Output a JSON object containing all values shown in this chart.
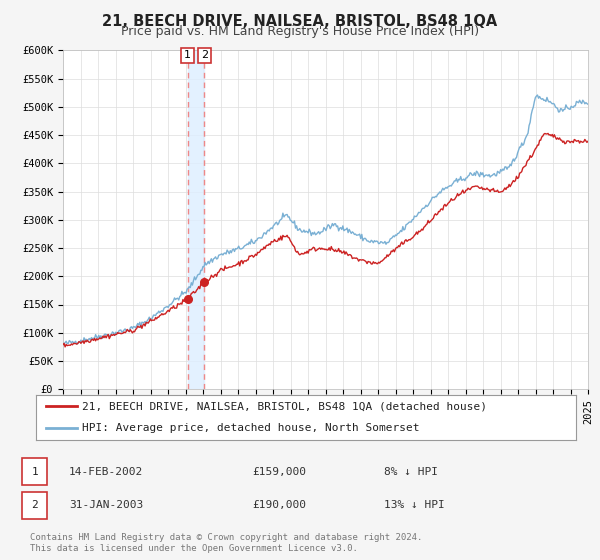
{
  "title": "21, BEECH DRIVE, NAILSEA, BRISTOL, BS48 1QA",
  "subtitle": "Price paid vs. HM Land Registry's House Price Index (HPI)",
  "ylim": [
    0,
    600000
  ],
  "yticks": [
    0,
    50000,
    100000,
    150000,
    200000,
    250000,
    300000,
    350000,
    400000,
    450000,
    500000,
    550000,
    600000
  ],
  "ytick_labels": [
    "£0",
    "£50K",
    "£100K",
    "£150K",
    "£200K",
    "£250K",
    "£300K",
    "£350K",
    "£400K",
    "£450K",
    "£500K",
    "£550K",
    "£600K"
  ],
  "background_color": "#f5f5f5",
  "plot_bg_color": "#ffffff",
  "grid_color": "#dddddd",
  "hpi_color": "#7ab0d4",
  "price_color": "#cc2222",
  "marker_color": "#cc2222",
  "vline_color": "#ee8888",
  "vspan_color": "#ddeeff",
  "sale1_date_num": 2002.12,
  "sale2_date_num": 2003.08,
  "sale1_price": 159000,
  "sale2_price": 190000,
  "legend_line1": "21, BEECH DRIVE, NAILSEA, BRISTOL, BS48 1QA (detached house)",
  "legend_line2": "HPI: Average price, detached house, North Somerset",
  "table_row1": [
    "1",
    "14-FEB-2002",
    "£159,000",
    "8% ↓ HPI"
  ],
  "table_row2": [
    "2",
    "31-JAN-2003",
    "£190,000",
    "13% ↓ HPI"
  ],
  "footer": "Contains HM Land Registry data © Crown copyright and database right 2024.\nThis data is licensed under the Open Government Licence v3.0.",
  "title_fontsize": 10.5,
  "subtitle_fontsize": 9,
  "tick_fontsize": 7.5,
  "legend_fontsize": 8,
  "table_fontsize": 8,
  "footer_fontsize": 6.5
}
